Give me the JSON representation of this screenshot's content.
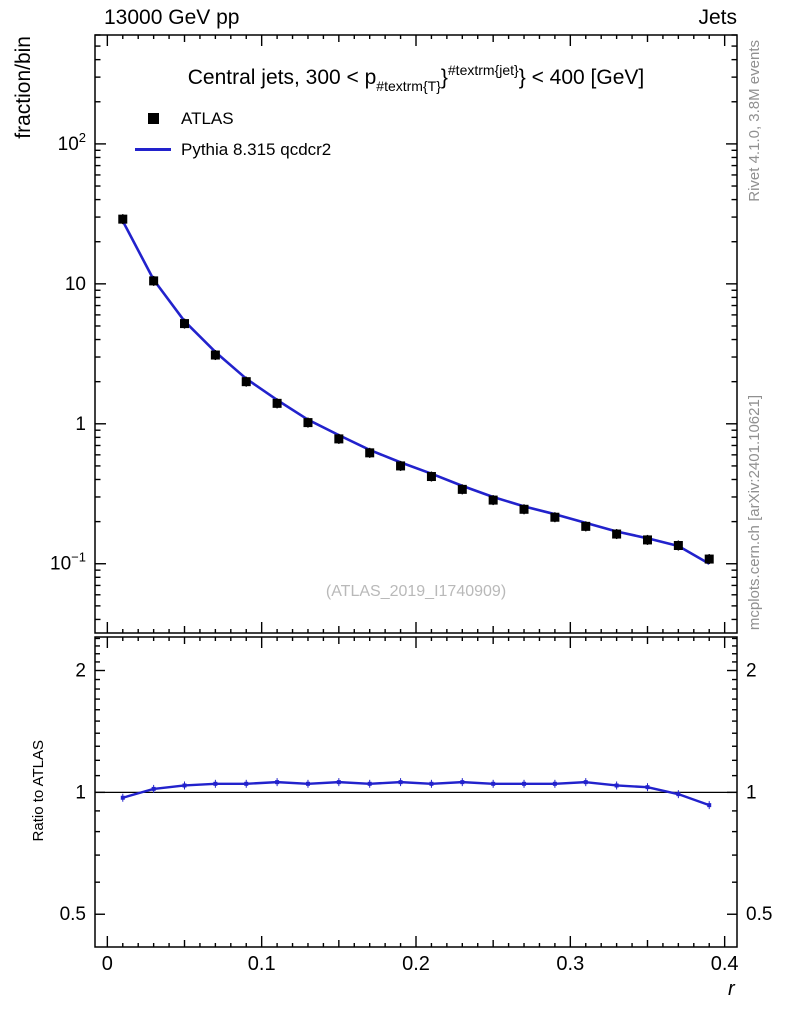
{
  "header": {
    "left": "13000 GeV pp",
    "right": "Jets"
  },
  "plot_title": {
    "pre": "Central jets, 300 < p",
    "sub": "#textrm{T}",
    "mid": "}",
    "sup": "#textrm{jet}",
    "post": "} < 400 [GeV]"
  },
  "legend": {
    "items": [
      {
        "label": "ATLAS",
        "marker": "filled-square",
        "color": "#000000"
      },
      {
        "label": "Pythia 8.315 qcdcr2",
        "marker": "line",
        "color": "#2222cc"
      }
    ]
  },
  "side_notes": {
    "top_right": "Rivet 4.1.0,  3.8M events",
    "bottom_right": "mcplots.cern.ch [arXiv:2401.10621]"
  },
  "watermark": "(ATLAS_2019_I1740909)",
  "colors": {
    "mc_line": "#2222cc",
    "data_marker": "#000000",
    "note_gray": "#909090",
    "watermark_gray": "#b9b9b9"
  },
  "chart_data": {
    "type": "line",
    "title": "Central jets, 300 < p_{#textrm{T}}^{#textrm{jet}} < 400 [GeV]",
    "xlabel": "r",
    "ylabel": "fraction/bin",
    "ratio_ylabel": "Ratio to ATLAS",
    "xscale": "linear",
    "yscale": "log",
    "ratio_yscale": "log",
    "xlim": [
      -0.008,
      0.408
    ],
    "ylim": [
      0.032,
      600
    ],
    "ratio_ylim": [
      0.415,
      2.42
    ],
    "xticks": [
      0,
      0.1,
      0.2,
      0.3,
      0.4
    ],
    "yticks_labeled": [
      100,
      10,
      1,
      0.1
    ],
    "ratio_yticks": [
      2,
      1,
      0.5
    ],
    "x": [
      0.01,
      0.03,
      0.05,
      0.07,
      0.09,
      0.11,
      0.13,
      0.15,
      0.17,
      0.19,
      0.21,
      0.23,
      0.25,
      0.27,
      0.29,
      0.31,
      0.33,
      0.35,
      0.37,
      0.39
    ],
    "series": [
      {
        "name": "ATLAS",
        "style": "points-square",
        "color": "#000000",
        "values": [
          29,
          10.5,
          5.2,
          3.1,
          2.0,
          1.4,
          1.02,
          0.78,
          0.62,
          0.5,
          0.42,
          0.34,
          0.285,
          0.245,
          0.215,
          0.185,
          0.163,
          0.148,
          0.135,
          0.108
        ]
      },
      {
        "name": "Pythia 8.315 qcdcr2",
        "style": "line",
        "color": "#2222cc",
        "values": [
          28.1,
          10.7,
          5.41,
          3.26,
          2.1,
          1.48,
          1.07,
          0.83,
          0.65,
          0.53,
          0.44,
          0.36,
          0.3,
          0.257,
          0.226,
          0.196,
          0.17,
          0.152,
          0.134,
          0.1
        ]
      }
    ],
    "ratio": {
      "name": "Pythia 8.315 qcdcr2 / ATLAS",
      "color": "#2222cc",
      "values": [
        0.97,
        1.02,
        1.04,
        1.05,
        1.05,
        1.06,
        1.05,
        1.06,
        1.05,
        1.06,
        1.05,
        1.06,
        1.05,
        1.05,
        1.05,
        1.06,
        1.04,
        1.03,
        0.99,
        0.93
      ]
    }
  }
}
